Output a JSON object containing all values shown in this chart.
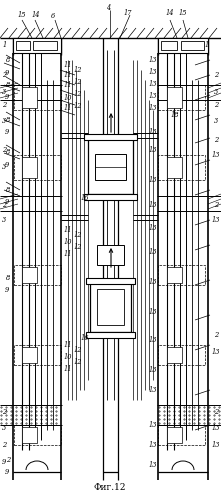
{
  "title": "Фиг.12",
  "fig_width": 2.21,
  "fig_height": 5.0,
  "dpi": 100,
  "bg": "#ffffff"
}
